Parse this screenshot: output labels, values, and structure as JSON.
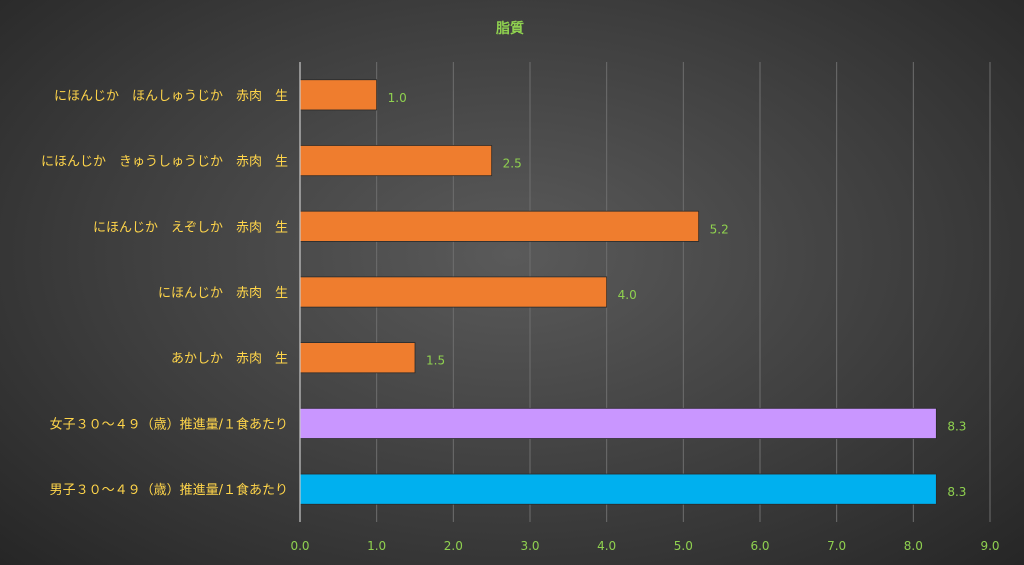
{
  "chart_data": {
    "type": "bar",
    "orientation": "horizontal",
    "title": "脂質",
    "categories": [
      "にほんじか　ほんしゅうじか　赤肉　生",
      "にほんじか　きゅうしゅうじか　赤肉　生",
      "にほんじか　えぞしか　赤肉　生",
      "にほんじか　赤肉　生",
      "あかしか　赤肉　生",
      "女子３０～４９（歳）推進量/１食あたり",
      "男子３０～４９（歳）推進量/１食あたり"
    ],
    "values": [
      1.0,
      2.5,
      5.2,
      4.0,
      1.5,
      8.3,
      8.3
    ],
    "value_labels": [
      "1.0",
      "2.5",
      "5.2",
      "4.0",
      "1.5",
      "8.3",
      "8.3"
    ],
    "bar_colors": [
      "#ef7d2e",
      "#ef7d2e",
      "#ef7d2e",
      "#ef7d2e",
      "#ef7d2e",
      "#c996ff",
      "#00b0ef"
    ],
    "xlim": [
      0,
      9.0
    ],
    "xticks": [
      "0.0",
      "1.0",
      "2.0",
      "3.0",
      "4.0",
      "5.0",
      "6.0",
      "7.0",
      "8.0",
      "9.0"
    ],
    "grid": true,
    "legend": "none"
  }
}
